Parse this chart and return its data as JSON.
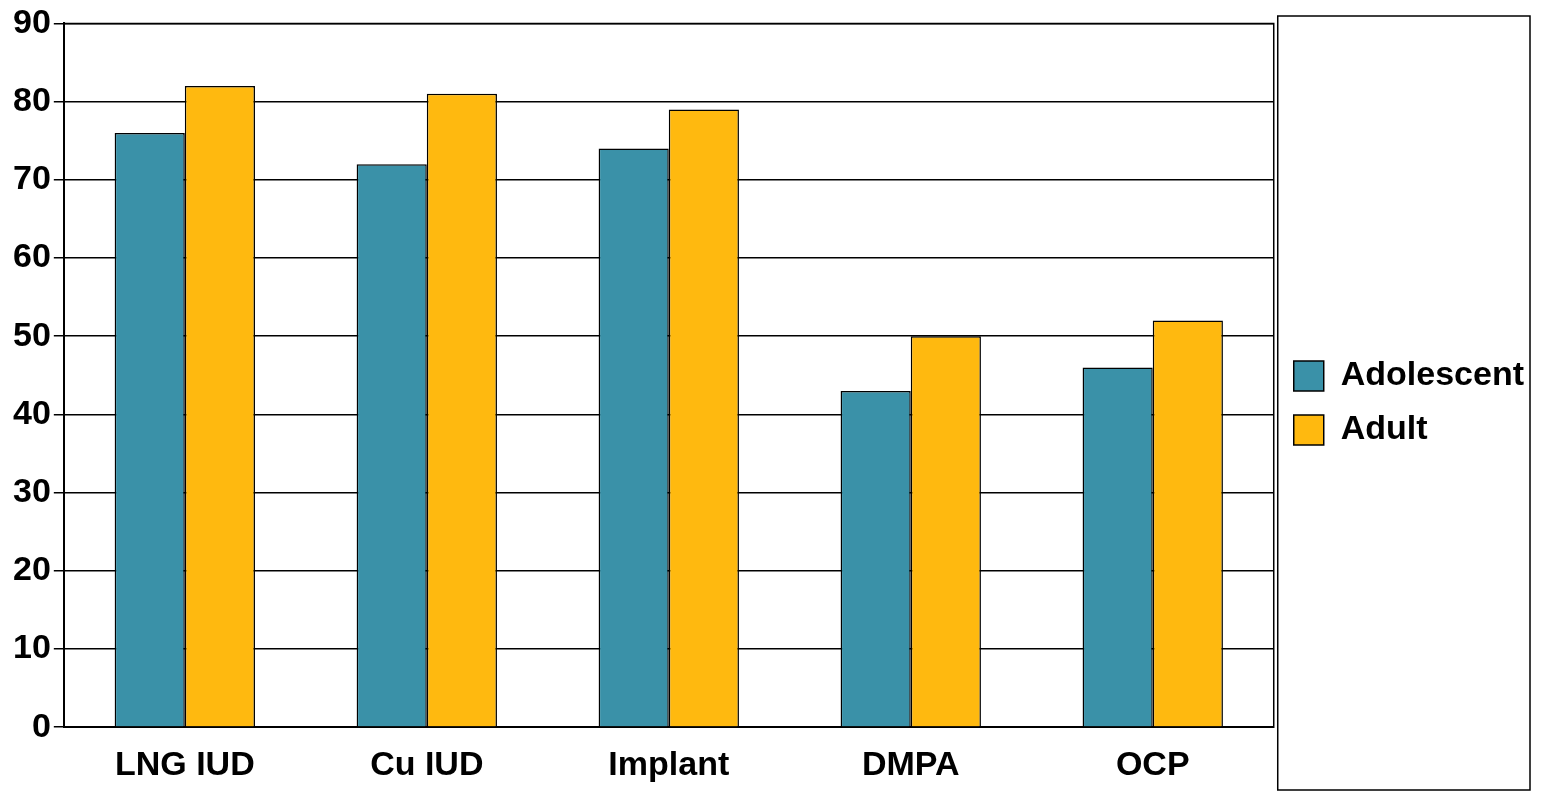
{
  "chart_data": {
    "type": "bar",
    "categories": [
      "LNG IUD",
      "Cu IUD",
      "Implant",
      "DMPA",
      "OCP"
    ],
    "series": [
      {
        "name": "Adolescent",
        "color": "#3a91a8",
        "values": [
          76,
          72,
          74,
          43,
          46
        ]
      },
      {
        "name": "Adult",
        "color": "#ffb90f",
        "values": [
          82,
          81,
          79,
          50,
          52
        ]
      }
    ],
    "ylim": [
      0,
      90
    ],
    "yticks": [
      0,
      10,
      20,
      30,
      40,
      50,
      60,
      70,
      80,
      90
    ],
    "grid": "y",
    "legend": "right"
  }
}
